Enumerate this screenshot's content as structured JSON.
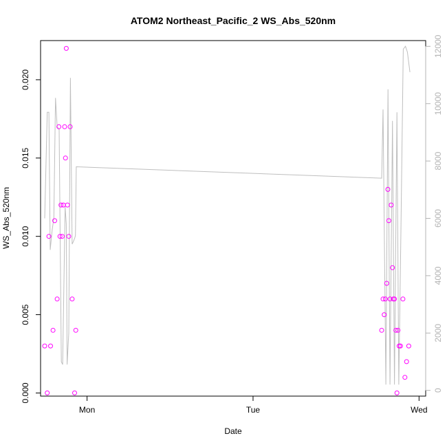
{
  "chart_data": {
    "type": "scatter",
    "title": "ATOM2 Northeast_Pacific_2 WS_Abs_520nm",
    "xlabel": "Date",
    "ylabel": "WS_Abs_520nm",
    "x_ticks": [
      {
        "label": "Mon",
        "value": 1.0
      },
      {
        "label": "Tue",
        "value": 2.0
      },
      {
        "label": "Wed",
        "value": 3.0
      }
    ],
    "xlim": [
      0.72,
      3.04
    ],
    "ylim": [
      -0.0002,
      0.0225
    ],
    "y_ticks": [
      "0.000",
      "0.005",
      "0.010",
      "0.015",
      "0.020"
    ],
    "y2lim": [
      -200,
      12200
    ],
    "y2_ticks": [
      "0",
      "2000",
      "4000",
      "6000",
      "8000",
      "10000",
      "12000"
    ],
    "grid": false,
    "points_color": "#ff00ff",
    "line_color": "#bebebe",
    "series": [
      {
        "marker": "circle",
        "axis": "left",
        "points": [
          [
            0.745,
            0.003
          ],
          [
            0.76,
            0.0
          ],
          [
            0.77,
            0.01
          ],
          [
            0.78,
            0.003
          ],
          [
            0.795,
            0.004
          ],
          [
            0.805,
            0.011
          ],
          [
            0.82,
            0.006
          ],
          [
            0.83,
            0.017
          ],
          [
            0.837,
            0.01
          ],
          [
            0.843,
            0.012
          ],
          [
            0.85,
            0.01
          ],
          [
            0.857,
            0.012
          ],
          [
            0.865,
            0.017
          ],
          [
            0.87,
            0.015
          ],
          [
            0.875,
            0.022
          ],
          [
            0.882,
            0.012
          ],
          [
            0.89,
            0.01
          ],
          [
            0.898,
            0.017
          ],
          [
            0.91,
            0.006
          ],
          [
            0.925,
            0.0
          ],
          [
            0.932,
            0.004
          ],
          [
            2.775,
            0.004
          ],
          [
            2.783,
            0.006
          ],
          [
            2.79,
            0.005
          ],
          [
            2.797,
            0.006
          ],
          [
            2.805,
            0.007
          ],
          [
            2.812,
            0.013
          ],
          [
            2.818,
            0.011
          ],
          [
            2.825,
            0.006
          ],
          [
            2.832,
            0.012
          ],
          [
            2.84,
            0.008
          ],
          [
            2.845,
            0.006
          ],
          [
            2.852,
            0.006
          ],
          [
            2.86,
            0.004
          ],
          [
            2.867,
            0.0
          ],
          [
            2.873,
            0.004
          ],
          [
            2.88,
            0.003
          ],
          [
            2.888,
            0.003
          ],
          [
            2.903,
            0.006
          ],
          [
            2.915,
            0.001
          ],
          [
            2.925,
            0.002
          ],
          [
            2.938,
            0.003
          ]
        ]
      },
      {
        "marker": "line",
        "axis": "right",
        "points": [
          [
            0.745,
            6000
          ],
          [
            0.76,
            9700
          ],
          [
            0.77,
            9700
          ],
          [
            0.778,
            4900
          ],
          [
            0.79,
            5600
          ],
          [
            0.8,
            6000
          ],
          [
            0.81,
            10200
          ],
          [
            0.82,
            9200
          ],
          [
            0.832,
            9100
          ],
          [
            0.845,
            1000
          ],
          [
            0.853,
            900
          ],
          [
            0.868,
            6400
          ],
          [
            0.875,
            5800
          ],
          [
            0.88,
            900
          ],
          [
            0.89,
            2000
          ],
          [
            0.9,
            10900
          ],
          [
            0.91,
            5100
          ],
          [
            0.918,
            5200
          ],
          [
            0.925,
            5300
          ],
          [
            0.93,
            5400
          ],
          [
            0.935,
            7800
          ],
          [
            2.775,
            7400
          ],
          [
            2.783,
            9800
          ],
          [
            2.8,
            200
          ],
          [
            2.813,
            10500
          ],
          [
            2.825,
            200
          ],
          [
            2.84,
            9400
          ],
          [
            2.852,
            200
          ],
          [
            2.867,
            9700
          ],
          [
            2.878,
            200
          ],
          [
            2.89,
            5200
          ],
          [
            2.905,
            11900
          ],
          [
            2.918,
            12000
          ],
          [
            2.93,
            11800
          ],
          [
            2.945,
            11100
          ]
        ]
      }
    ]
  }
}
